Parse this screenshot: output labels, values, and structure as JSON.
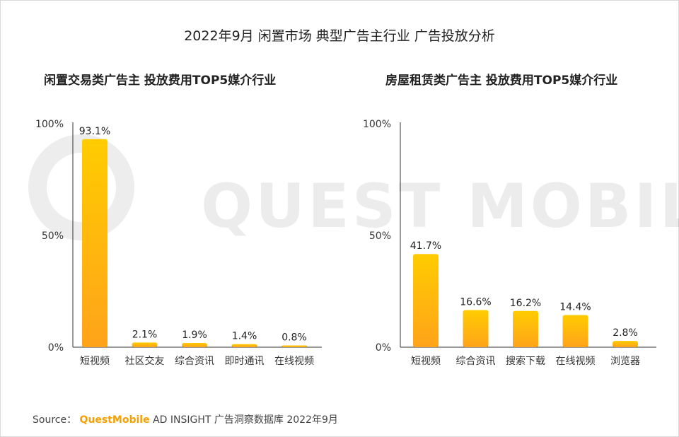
{
  "main_title": "2022年9月 闲置市场 典型广告主行业 广告投放分析",
  "watermark": "QUEST MOBILE",
  "source": {
    "label": "Source：",
    "brand": "QuestMobile",
    "text": "AD INSIGHT 广告洞察数据库 2022年9月"
  },
  "colors": {
    "bar_top": "#FFCC00",
    "bar_bottom": "#FFA31A",
    "axis": "#333333"
  },
  "chart_data": [
    {
      "type": "bar",
      "title": "闲置交易类广告主 投放费用TOP5媒介行业",
      "categories": [
        "短视频",
        "社区交友",
        "综合资讯",
        "即时通讯",
        "在线视频"
      ],
      "values": [
        93.1,
        2.1,
        1.9,
        1.4,
        0.8
      ],
      "value_labels": [
        "93.1%",
        "2.1%",
        "1.9%",
        "1.4%",
        "0.8%"
      ],
      "ylim": [
        0,
        100
      ],
      "yticks": [
        "0%",
        "50%",
        "100%"
      ],
      "grid": false
    },
    {
      "type": "bar",
      "title": "房屋租赁类广告主 投放费用TOP5媒介行业",
      "categories": [
        "短视频",
        "综合资讯",
        "搜索下载",
        "在线视频",
        "浏览器"
      ],
      "values": [
        41.7,
        16.6,
        16.2,
        14.4,
        2.8
      ],
      "value_labels": [
        "41.7%",
        "16.6%",
        "16.2%",
        "14.4%",
        "2.8%"
      ],
      "ylim": [
        0,
        100
      ],
      "yticks": [
        "0%",
        "50%",
        "100%"
      ],
      "grid": false
    }
  ]
}
